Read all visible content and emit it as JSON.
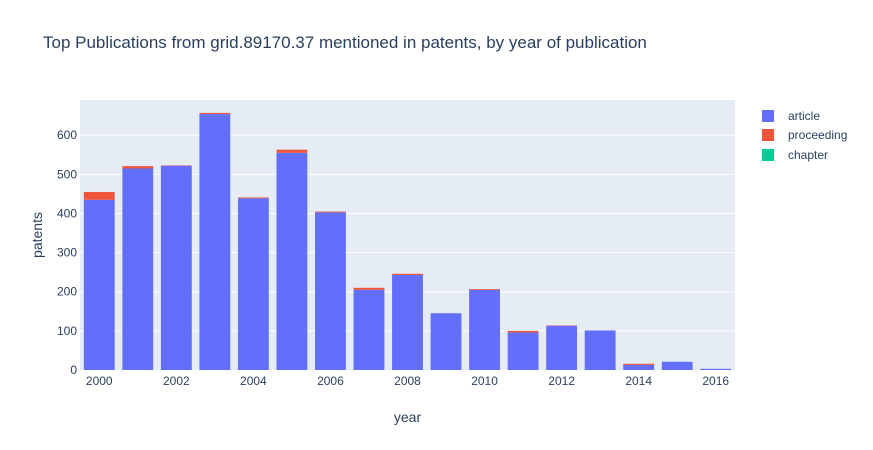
{
  "chart_data": {
    "type": "bar",
    "title": "Top Publications from grid.89170.37 mentioned in patents, by year of publication",
    "xlabel": "year",
    "ylabel": "patents",
    "barmode": "stack",
    "ylim": [
      0,
      690
    ],
    "yticks": [
      0,
      100,
      200,
      300,
      400,
      500,
      600
    ],
    "xticks": [
      2000,
      2002,
      2004,
      2006,
      2008,
      2010,
      2012,
      2014,
      2016
    ],
    "grid": true,
    "legend_position": "top-right",
    "categories": [
      2000,
      2001,
      2002,
      2003,
      2004,
      2005,
      2006,
      2007,
      2008,
      2009,
      2010,
      2011,
      2012,
      2013,
      2014,
      2015,
      2016
    ],
    "series": [
      {
        "name": "article",
        "color": "#636efa",
        "values": [
          435,
          515,
          522,
          654,
          439,
          555,
          403,
          205,
          243,
          145,
          205,
          96,
          113,
          101,
          13,
          21,
          3
        ]
      },
      {
        "name": "proceeding",
        "color": "#ef553b",
        "values": [
          20,
          6,
          1,
          3,
          2,
          8,
          2,
          5,
          3,
          0,
          2,
          4,
          1,
          0,
          3,
          0,
          0
        ]
      },
      {
        "name": "chapter",
        "color": "#00cc96",
        "values": [
          0,
          0,
          0,
          0,
          0,
          0,
          0,
          0,
          0,
          0,
          0,
          0,
          0,
          0,
          0,
          0,
          0
        ]
      }
    ]
  }
}
